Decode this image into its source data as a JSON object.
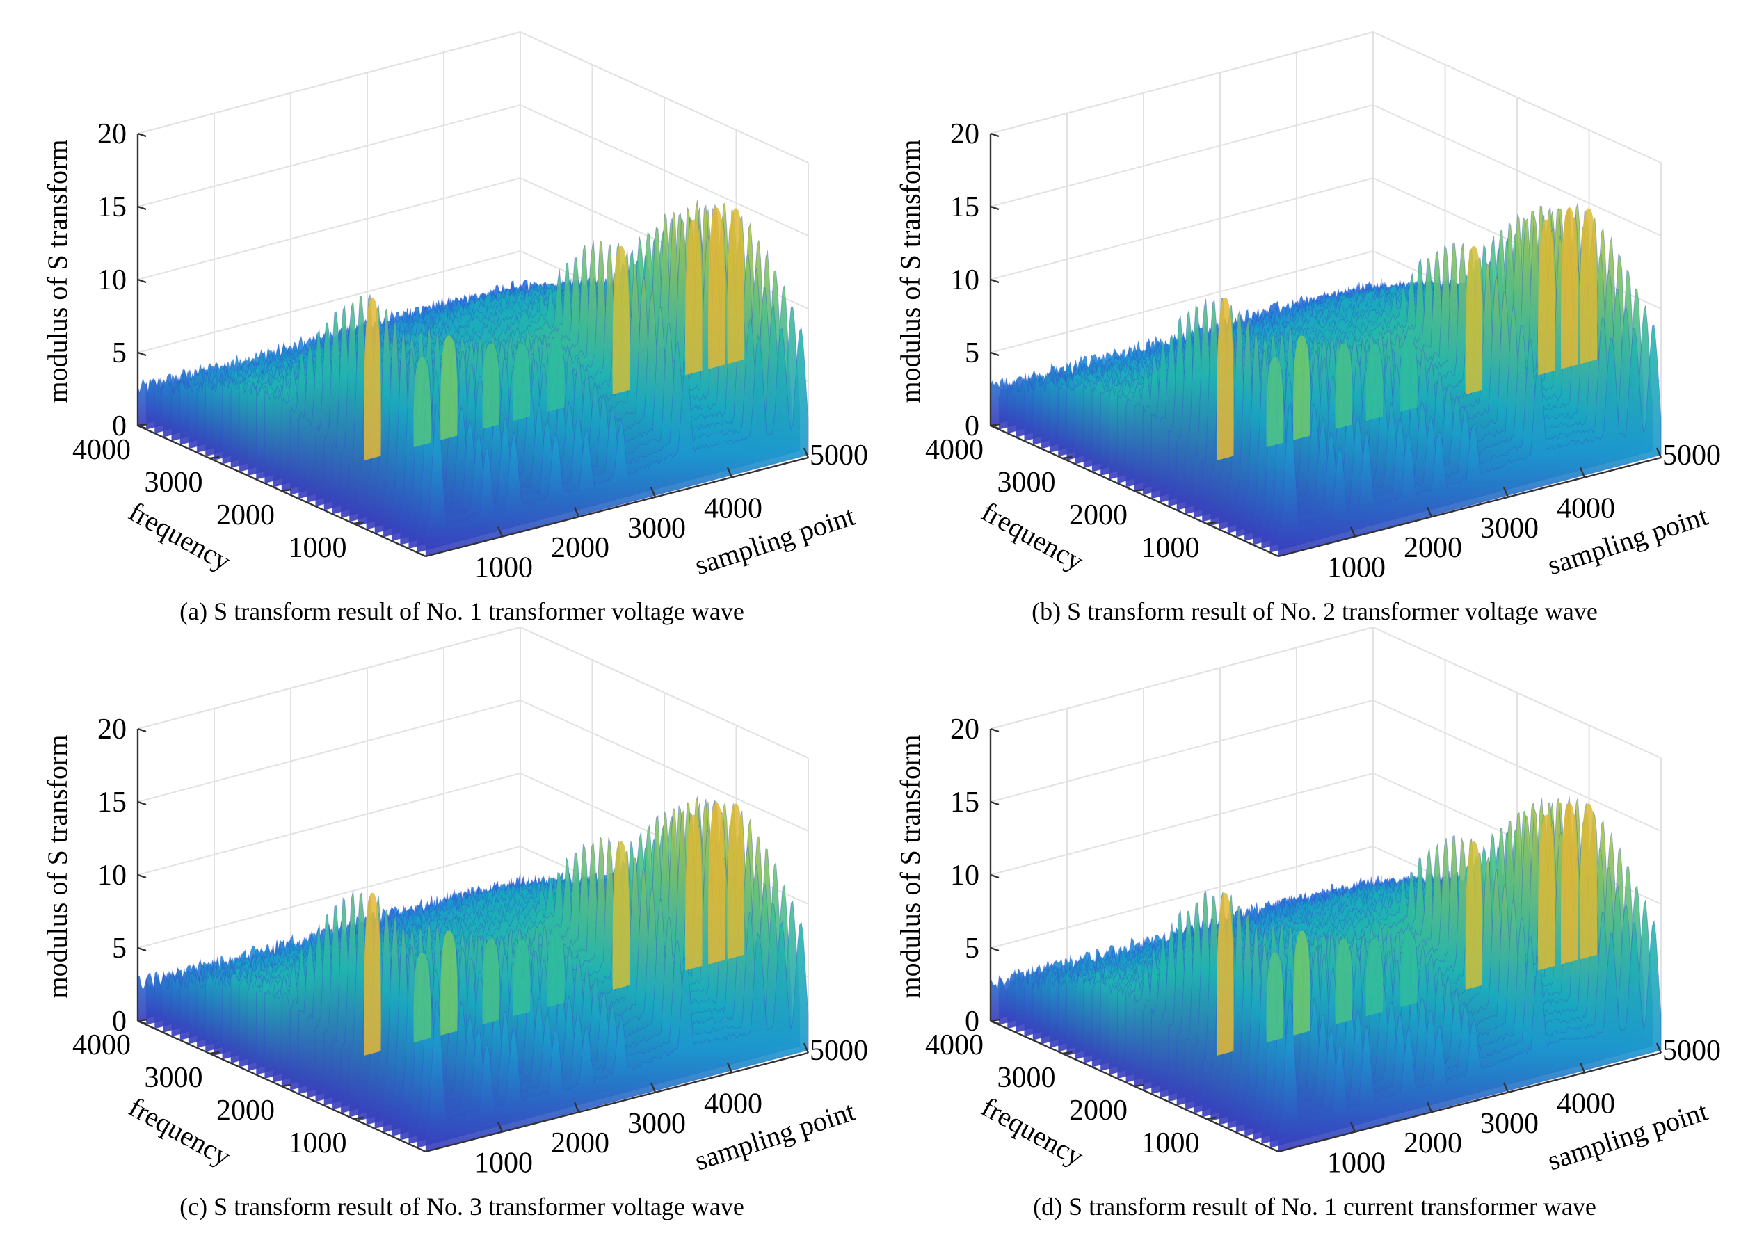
{
  "figure": {
    "background": "#ffffff"
  },
  "colormap": [
    "#3f24a8",
    "#2f5fe0",
    "#1f8ad8",
    "#18a8c2",
    "#27bba4",
    "#6dc96b",
    "#bdc43b",
    "#f0b334"
  ],
  "chart_data": [
    {
      "panel": "a",
      "type": "surface",
      "caption": "(a) S transform result of No. 1 transformer voltage wave",
      "zlabel": "modulus of S transform",
      "ylabel": "frequency",
      "xlabel": "sampling point",
      "zticks": [
        "0",
        "5",
        "10",
        "15",
        "20"
      ],
      "yticks": [
        "4000",
        "3000",
        "2000",
        "1000"
      ],
      "xticks": [
        "1000",
        "2000",
        "3000",
        "4000",
        "5000"
      ],
      "zlim": [
        0,
        20
      ],
      "ylim": [
        0,
        4000
      ],
      "xlim": [
        0,
        5000
      ],
      "peaks": [
        {
          "x": 150,
          "y": 900,
          "z": 15.5
        },
        {
          "x": 800,
          "y": 1000,
          "z": 10.5
        },
        {
          "x": 1150,
          "y": 1000,
          "z": 11.5
        },
        {
          "x": 1700,
          "y": 1000,
          "z": 10.2
        },
        {
          "x": 2100,
          "y": 1000,
          "z": 9.6
        },
        {
          "x": 2550,
          "y": 1000,
          "z": 9.4
        },
        {
          "x": 3400,
          "y": 1000,
          "z": 14.5
        },
        {
          "x": 4350,
          "y": 1000,
          "z": 15.0
        },
        {
          "x": 4650,
          "y": 1000,
          "z": 15.4
        },
        {
          "x": 4900,
          "y": 1000,
          "z": 15.0
        }
      ]
    },
    {
      "panel": "b",
      "type": "surface",
      "caption": "(b) S transform result of No. 2 transformer voltage wave",
      "zlabel": "modulus of S transform",
      "ylabel": "frequency",
      "xlabel": "sampling point",
      "zticks": [
        "0",
        "5",
        "10",
        "15",
        "20"
      ],
      "yticks": [
        "4000",
        "3000",
        "2000",
        "1000"
      ],
      "xticks": [
        "1000",
        "2000",
        "3000",
        "4000",
        "5000"
      ],
      "zlim": [
        0,
        20
      ],
      "ylim": [
        0,
        4000
      ],
      "xlim": [
        0,
        5000
      ],
      "peaks": [
        {
          "x": 150,
          "y": 900,
          "z": 15.5
        },
        {
          "x": 800,
          "y": 1000,
          "z": 10.5
        },
        {
          "x": 1150,
          "y": 1000,
          "z": 11.5
        },
        {
          "x": 1700,
          "y": 1000,
          "z": 10.2
        },
        {
          "x": 2100,
          "y": 1000,
          "z": 9.6
        },
        {
          "x": 2550,
          "y": 1000,
          "z": 9.4
        },
        {
          "x": 3400,
          "y": 1000,
          "z": 14.5
        },
        {
          "x": 4350,
          "y": 1000,
          "z": 15.0
        },
        {
          "x": 4650,
          "y": 1000,
          "z": 15.4
        },
        {
          "x": 4900,
          "y": 1000,
          "z": 15.0
        }
      ]
    },
    {
      "panel": "c",
      "type": "surface",
      "caption": "(c) S transform result of No. 3 transformer voltage wave",
      "zlabel": "modulus of S transform",
      "ylabel": "frequency",
      "xlabel": "sampling point",
      "zticks": [
        "0",
        "5",
        "10",
        "15",
        "20"
      ],
      "yticks": [
        "4000",
        "3000",
        "2000",
        "1000"
      ],
      "xticks": [
        "1000",
        "2000",
        "3000",
        "4000",
        "5000"
      ],
      "zlim": [
        0,
        20
      ],
      "ylim": [
        0,
        4000
      ],
      "xlim": [
        0,
        5000
      ],
      "peaks": [
        {
          "x": 150,
          "y": 900,
          "z": 15.5
        },
        {
          "x": 800,
          "y": 1000,
          "z": 10.5
        },
        {
          "x": 1150,
          "y": 1000,
          "z": 11.5
        },
        {
          "x": 1700,
          "y": 1000,
          "z": 10.2
        },
        {
          "x": 2100,
          "y": 1000,
          "z": 9.6
        },
        {
          "x": 2550,
          "y": 1000,
          "z": 9.4
        },
        {
          "x": 3400,
          "y": 1000,
          "z": 14.5
        },
        {
          "x": 4350,
          "y": 1000,
          "z": 15.0
        },
        {
          "x": 4650,
          "y": 1000,
          "z": 15.4
        },
        {
          "x": 4900,
          "y": 1000,
          "z": 15.0
        }
      ]
    },
    {
      "panel": "d",
      "type": "surface",
      "caption": "(d) S transform result of No. 1 current transformer wave",
      "zlabel": "modulus of S transform",
      "ylabel": "frequency",
      "xlabel": "sampling point",
      "zticks": [
        "0",
        "5",
        "10",
        "15",
        "20"
      ],
      "yticks": [
        "4000",
        "3000",
        "2000",
        "1000"
      ],
      "xticks": [
        "1000",
        "2000",
        "3000",
        "4000",
        "5000"
      ],
      "zlim": [
        0,
        20
      ],
      "ylim": [
        0,
        4000
      ],
      "xlim": [
        0,
        5000
      ],
      "peaks": [
        {
          "x": 150,
          "y": 900,
          "z": 15.5
        },
        {
          "x": 800,
          "y": 1000,
          "z": 10.5
        },
        {
          "x": 1150,
          "y": 1000,
          "z": 11.5
        },
        {
          "x": 1700,
          "y": 1000,
          "z": 10.2
        },
        {
          "x": 2100,
          "y": 1000,
          "z": 9.6
        },
        {
          "x": 2550,
          "y": 1000,
          "z": 9.4
        },
        {
          "x": 3400,
          "y": 1000,
          "z": 14.5
        },
        {
          "x": 4350,
          "y": 1000,
          "z": 15.0
        },
        {
          "x": 4650,
          "y": 1000,
          "z": 15.4
        },
        {
          "x": 4900,
          "y": 1000,
          "z": 15.0
        }
      ]
    }
  ]
}
